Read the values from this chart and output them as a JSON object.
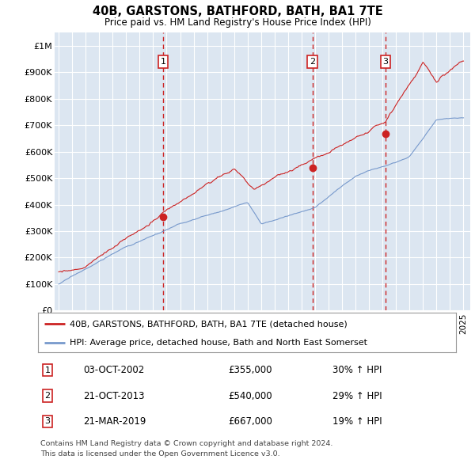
{
  "title1": "40B, GARSTONS, BATHFORD, BATH, BA1 7TE",
  "title2": "Price paid vs. HM Land Registry's House Price Index (HPI)",
  "bg_color": "#dce6f1",
  "red_color": "#cc2222",
  "blue_color": "#7799cc",
  "legend_line1": "40B, GARSTONS, BATHFORD, BATH, BA1 7TE (detached house)",
  "legend_line2": "HPI: Average price, detached house, Bath and North East Somerset",
  "sales": [
    {
      "num": 1,
      "date": "03-OCT-2002",
      "price": 355000,
      "pct": "30%",
      "dir": "↑",
      "x": 2002.75
    },
    {
      "num": 2,
      "date": "21-OCT-2013",
      "price": 540000,
      "pct": "29%",
      "dir": "↑",
      "x": 2013.8
    },
    {
      "num": 3,
      "date": "21-MAR-2019",
      "price": 667000,
      "pct": "19%",
      "dir": "↑",
      "x": 2019.22
    }
  ],
  "footer1": "Contains HM Land Registry data © Crown copyright and database right 2024.",
  "footer2": "This data is licensed under the Open Government Licence v3.0.",
  "ytick_vals": [
    0,
    100000,
    200000,
    300000,
    400000,
    500000,
    600000,
    700000,
    800000,
    900000,
    1000000
  ],
  "ytick_labels": [
    "£0",
    "£100K",
    "£200K",
    "£300K",
    "£400K",
    "£500K",
    "£600K",
    "£700K",
    "£800K",
    "£900K",
    "£1M"
  ],
  "ylim": [
    0,
    1050000
  ],
  "xlim_lo": 1994.7,
  "xlim_hi": 2025.5,
  "x_start": 1995,
  "x_end": 2025
}
